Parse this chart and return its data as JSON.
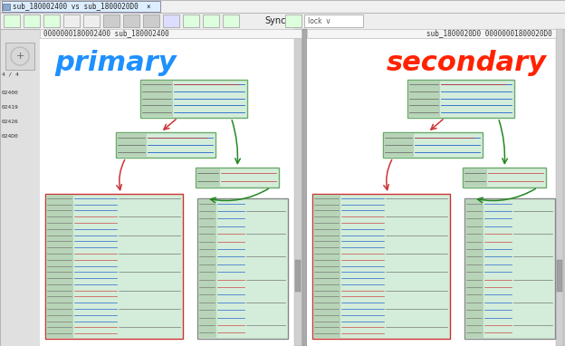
{
  "title_tab": "sub_180002400 vs sub_1800020D0",
  "left_label": "primary",
  "right_label": "secondary",
  "left_label_color": "#1E90FF",
  "right_label_color": "#FF2200",
  "left_addr": "0000000180002400 sub_180002400",
  "right_addr": "sub_1800020D0 00000001800020D0",
  "arrow_red": "#cc3333",
  "arrow_green": "#228822",
  "sync_text": "Sync",
  "label_fontsize": 22,
  "node_bg": "#d4edda",
  "node_col_bg": "#b8d4b8",
  "node_border_green": "#6aaa6a",
  "node_border_red": "#cc3333",
  "node_border_gray": "#888888"
}
